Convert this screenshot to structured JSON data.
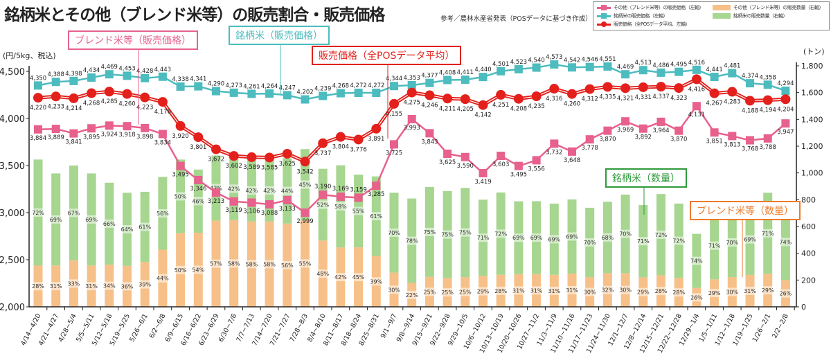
{
  "title": "銘柄米とその他（ブレンド米等）の販売割合・販売価格",
  "note": "参考／農林水産省発表（POSデータに基づき作成）",
  "legend": {
    "other_price": "その他（ブレンド米等）の販売価格（左軸）",
    "brand_price": "銘柄米の販売価格（左軸）",
    "avg_price": "販売価格（全POSデータ平均、左軸）",
    "other_qty": "その他（ブレンド米等）の販売数量（右軸）",
    "brand_qty": "銘柄米の販売数量（右軸）"
  },
  "callouts": {
    "other_price": "ブレンド米等（販売価格）",
    "brand_price": "銘柄米（販売価格）",
    "avg_price": "販売価格（全POSデータ平均）",
    "brand_qty": "銘柄米（数量）",
    "other_qty": "ブレンド米等（数量）"
  },
  "colors": {
    "other_price": "#e8608c",
    "brand_price": "#4cbcbf",
    "avg_price": "#e3201b",
    "other_qty": "#f6c088",
    "brand_qty": "#a6d68f"
  },
  "chart_data": {
    "type": "bar+line",
    "title": "銘柄米とその他（ブレンド米等）の販売割合・販売価格",
    "ylabel_left": "(円/5kg、税込)",
    "ylabel_right": "(トン)",
    "ylim_left": [
      2000,
      4500
    ],
    "yticks_left": [
      "2,000",
      "2,500",
      "3,000",
      "3,500",
      "4,000",
      "4,500"
    ],
    "ylim_right": [
      0,
      1800
    ],
    "yticks_right": [
      "0",
      "200",
      "400",
      "600",
      "800",
      "1,000",
      "1,200",
      "1,400",
      "1,600",
      "1,800"
    ],
    "categories": [
      "4/14~4/20",
      "4/21~4/27",
      "4/28~5/4",
      "5/5~5/11",
      "5/12~5/18",
      "5/19~5/25",
      "5/26~6/1",
      "6/2~6/8",
      "6/9~6/15",
      "6/16~6/22",
      "6/23~6/29",
      "6/30~7/6",
      "7/7~7/13",
      "7/14~7/20",
      "7/21~7/27",
      "7/28~8/3",
      "8/4~8/10",
      "8/11~8/17",
      "8/18~8/24",
      "8/25~8/31",
      "9/1~9/7",
      "9/8~9/14",
      "9/15~9/21",
      "9/22~9/28",
      "9/29~10/5",
      "10/6~10/12",
      "10/13~10/19",
      "10/20~10/26",
      "10/27~11/2",
      "11/3~11/9",
      "11/10~11/16",
      "11/17~11/23",
      "11/24~11/30",
      "12/1~12/7",
      "12/8~12/14",
      "12/15~12/21",
      "12/22~12/28",
      "12/29~1/4",
      "1/5~1/11",
      "1/12~1/18",
      "1/19~1/25",
      "1/26~2/1",
      "2/2~2/8"
    ],
    "brand_price": [
      4350,
      4388,
      4398,
      4434,
      4469,
      4453,
      4428,
      4443,
      4338,
      4341,
      4290,
      4273,
      4261,
      4264,
      4247,
      4202,
      4239,
      4268,
      4272,
      4272,
      4344,
      4353,
      4377,
      4408,
      4411,
      4440,
      4501,
      4523,
      4540,
      4573,
      4542,
      4546,
      4551,
      4469,
      4513,
      4486,
      4495,
      4516,
      4441,
      4481,
      4374,
      4358,
      4294
    ],
    "avg_price": [
      4220,
      4233,
      4214,
      4268,
      4285,
      4260,
      4223,
      4176,
      3920,
      3801,
      3672,
      3602,
      3589,
      3585,
      3625,
      3542,
      3737,
      3804,
      3776,
      3891,
      4155,
      4275,
      4246,
      4211,
      4205,
      4142,
      4251,
      4208,
      4235,
      4316,
      4260,
      4312,
      4335,
      4321,
      4331,
      4337,
      4323,
      4416,
      4267,
      4283,
      4188,
      4194,
      4204
    ],
    "other_price": [
      3884,
      3889,
      3841,
      3895,
      3924,
      3918,
      3898,
      3834,
      3495,
      3346,
      3213,
      3119,
      3106,
      3088,
      3133,
      2999,
      3190,
      3169,
      3159,
      3285,
      3725,
      3993,
      3843,
      3625,
      3590,
      3419,
      3603,
      3495,
      3556,
      3732,
      3648,
      3778,
      3870,
      3969,
      3892,
      3964,
      3870,
      4131,
      3851,
      3813,
      3768,
      3788,
      3947
    ],
    "total_qty": [
      1100,
      996,
      1055,
      996,
      927,
      852,
      859,
      970,
      1100,
      1025,
      1130,
      1117,
      1100,
      1100,
      1110,
      1178,
      1031,
      1057,
      987,
      974,
      852,
      809,
      895,
      864,
      888,
      800,
      854,
      788,
      789,
      771,
      802,
      740,
      785,
      838,
      760,
      842,
      771,
      545,
      708,
      740,
      769,
      852,
      769
    ],
    "brand_share_pct": [
      72,
      69,
      67,
      69,
      66,
      64,
      61,
      56,
      50,
      46,
      43,
      42,
      42,
      42,
      44,
      45,
      52,
      58,
      55,
      61,
      70,
      78,
      75,
      75,
      75,
      71,
      72,
      69,
      69,
      69,
      69,
      70,
      68,
      70,
      71,
      72,
      72,
      74,
      71,
      70,
      69,
      71,
      74
    ],
    "other_share_pct": [
      28,
      31,
      33,
      31,
      34,
      36,
      39,
      44,
      50,
      54,
      57,
      58,
      58,
      58,
      56,
      55,
      48,
      42,
      45,
      39,
      30,
      22,
      25,
      25,
      25,
      29,
      28,
      31,
      31,
      31,
      31,
      30,
      32,
      30,
      29,
      28,
      28,
      26,
      29,
      30,
      31,
      29,
      26
    ],
    "grid": false,
    "legend": "top-right"
  }
}
